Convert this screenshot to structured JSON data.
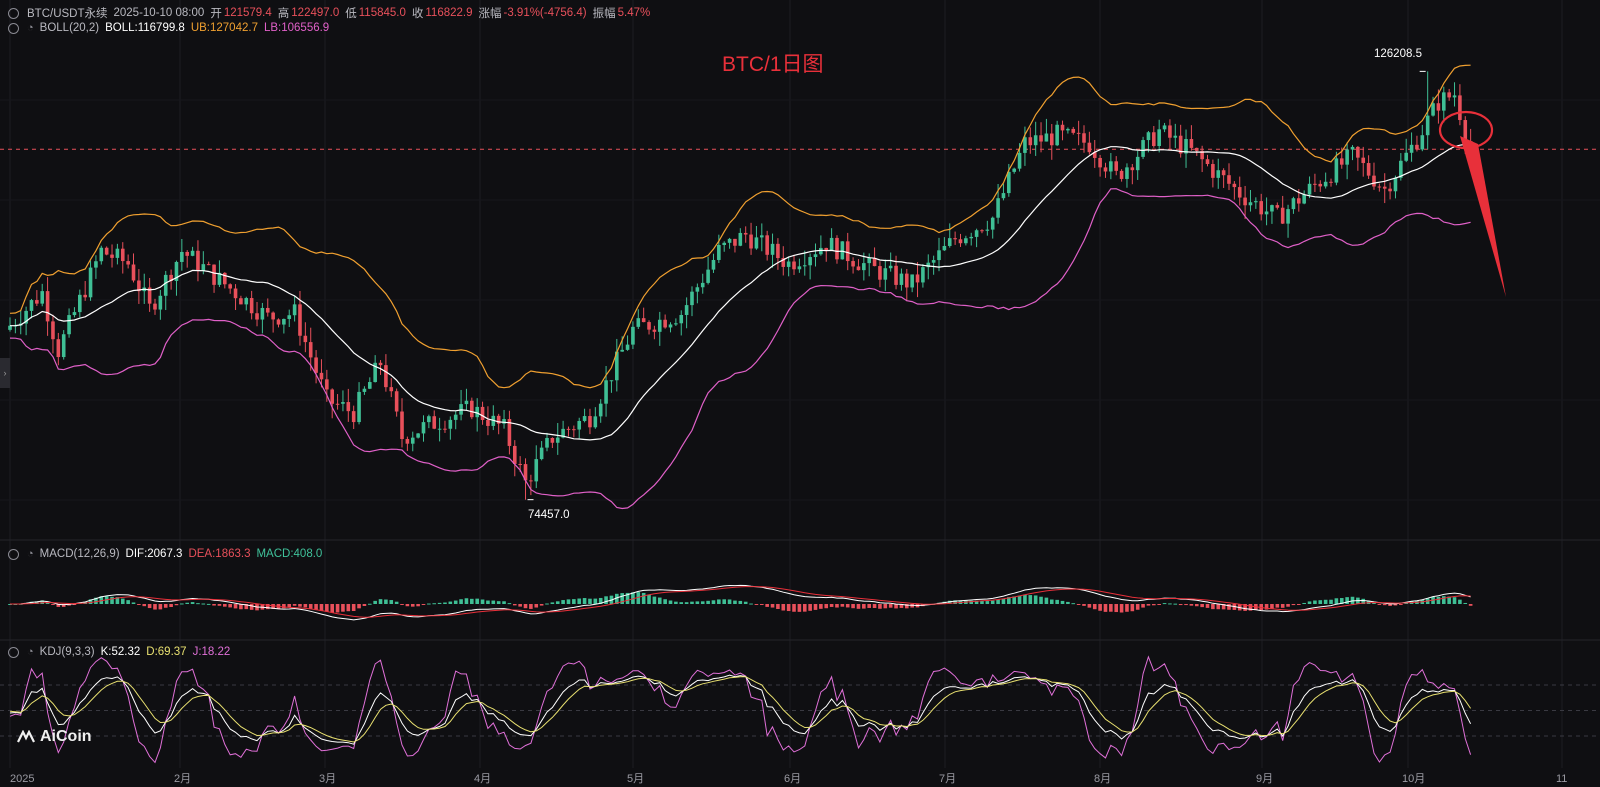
{
  "header": {
    "symbol": "BTC/USDT永续",
    "datetime": "2025-10-10 08:00",
    "open_label": "开",
    "open": "121579.4",
    "high_label": "高",
    "high": "122497.0",
    "low_label": "低",
    "low": "115845.0",
    "close_label": "收",
    "close": "116822.9",
    "change_label": "涨幅",
    "change": "-3.91%(-4756.4)",
    "amp_label": "振幅",
    "amp": "5.47%"
  },
  "boll": {
    "name": "BOLL(20,2)",
    "mid": "BOLL:116799.8",
    "ub": "UB:127042.7",
    "lb": "LB:106556.9"
  },
  "macd": {
    "name": "MACD(12,26,9)",
    "dif": "DIF:2067.3",
    "dea": "DEA:1863.3",
    "macd": "MACD:408.0"
  },
  "kdj": {
    "name": "KDJ(9,3,3)",
    "k": "K:52.32",
    "d": "D:69.37",
    "j": "J:18.22"
  },
  "annotation": "BTC/1日图",
  "logo": "AiCoin",
  "colors": {
    "up": "#3fbf95",
    "down": "#e8505b",
    "mid": "#ffffff",
    "ub": "#f0a030",
    "lb": "#e060c8",
    "dif": "#ffffff",
    "dea": "#e8303a",
    "k": "#ffffff",
    "d": "#e8e070",
    "j": "#e070d8",
    "annot": "#e8303a"
  },
  "chart_data": {
    "type": "candlestick",
    "title": "BTC/1日图",
    "x_ticks": [
      "2025",
      "2月",
      "3月",
      "4月",
      "5月",
      "6月",
      "7月",
      "8月",
      "9月",
      "10月",
      "11"
    ],
    "y_range": [
      72000,
      130000
    ],
    "marked_high": {
      "label": "126208.5",
      "value": 126208.5
    },
    "marked_low": {
      "label": "74457.0",
      "value": 74457.0
    },
    "price_path": [
      {
        "x": 0,
        "y": 95500
      },
      {
        "x": 6,
        "y": 99500
      },
      {
        "x": 9,
        "y": 92500
      },
      {
        "x": 17,
        "y": 104500
      },
      {
        "x": 22,
        "y": 103000
      },
      {
        "x": 26,
        "y": 97500
      },
      {
        "x": 32,
        "y": 104500
      },
      {
        "x": 40,
        "y": 100500
      },
      {
        "x": 48,
        "y": 96500
      },
      {
        "x": 53,
        "y": 97000
      },
      {
        "x": 59,
        "y": 86500
      },
      {
        "x": 64,
        "y": 85000
      },
      {
        "x": 69,
        "y": 91000
      },
      {
        "x": 73,
        "y": 82000
      },
      {
        "x": 78,
        "y": 83500
      },
      {
        "x": 86,
        "y": 85500
      },
      {
        "x": 92,
        "y": 83000
      },
      {
        "x": 96,
        "y": 76500
      },
      {
        "x": 101,
        "y": 82000
      },
      {
        "x": 108,
        "y": 84500
      },
      {
        "x": 116,
        "y": 95000
      },
      {
        "x": 125,
        "y": 97000
      },
      {
        "x": 132,
        "y": 104500
      },
      {
        "x": 137,
        "y": 106500
      },
      {
        "x": 145,
        "y": 103000
      },
      {
        "x": 152,
        "y": 105500
      },
      {
        "x": 160,
        "y": 102500
      },
      {
        "x": 168,
        "y": 100500
      },
      {
        "x": 176,
        "y": 106000
      },
      {
        "x": 183,
        "y": 108500
      },
      {
        "x": 189,
        "y": 117500
      },
      {
        "x": 195,
        "y": 118500
      },
      {
        "x": 201,
        "y": 117500
      },
      {
        "x": 206,
        "y": 113500
      },
      {
        "x": 214,
        "y": 119000
      },
      {
        "x": 220,
        "y": 116500
      },
      {
        "x": 229,
        "y": 111500
      },
      {
        "x": 236,
        "y": 108500
      },
      {
        "x": 243,
        "y": 112500
      },
      {
        "x": 250,
        "y": 116000
      },
      {
        "x": 256,
        "y": 112000
      },
      {
        "x": 262,
        "y": 118000
      },
      {
        "x": 266,
        "y": 122500
      },
      {
        "x": 269,
        "y": 123500
      },
      {
        "x": 272,
        "y": 116800
      }
    ],
    "indicators": [
      "BOLL(20,2)",
      "MACD(12,26,9)",
      "KDJ(9,3,3)"
    ],
    "dashed_price_line": 116800
  }
}
